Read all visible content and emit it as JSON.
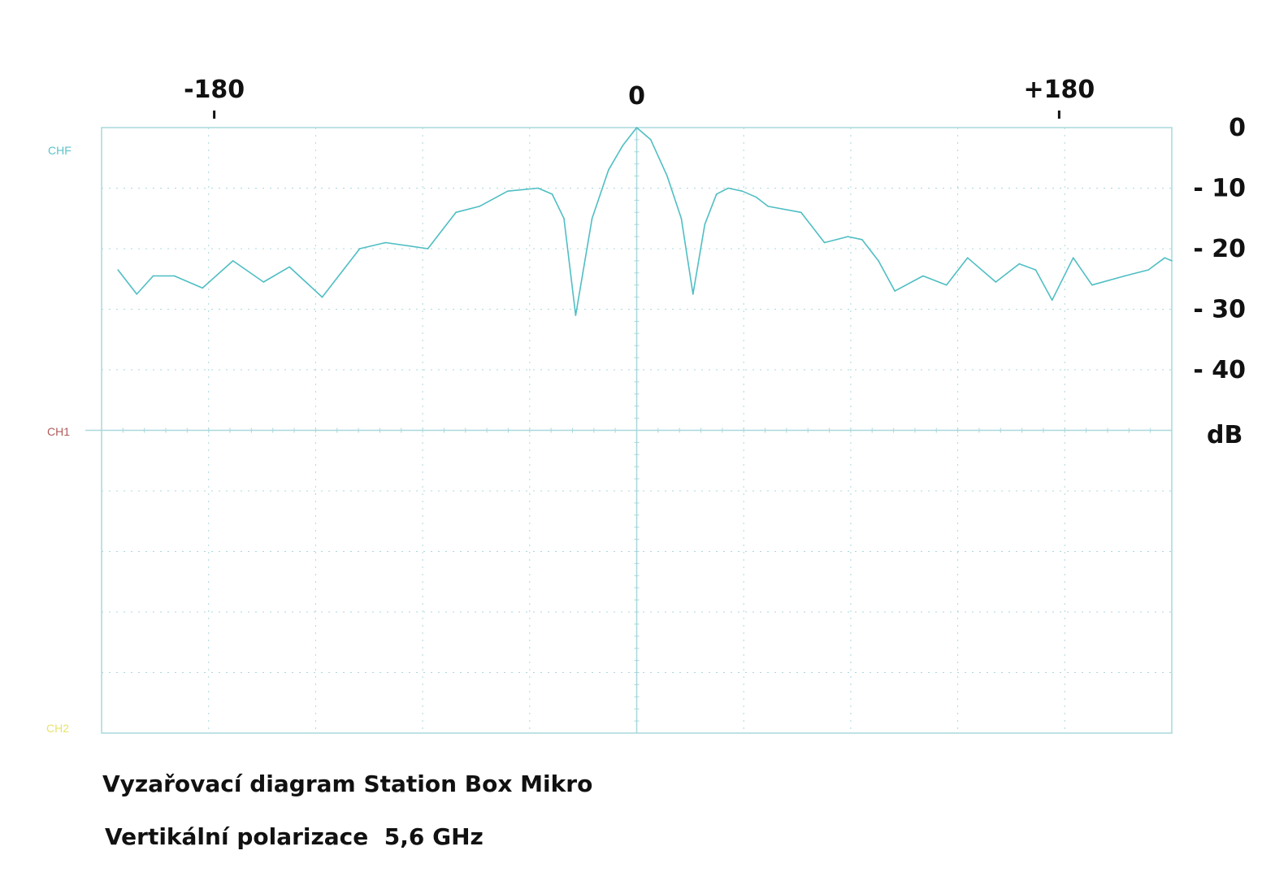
{
  "chart_data": {
    "type": "line",
    "title": "Vyzařovací diagram Station Box Mikro",
    "subtitle": "Vertikální polarizace  5,6 GHz",
    "xlabel": "",
    "ylabel": "dB",
    "x_ticks": [
      {
        "value": -180,
        "label": "-180"
      },
      {
        "value": 0,
        "label": "0"
      },
      {
        "value": 180,
        "label": "+180"
      }
    ],
    "y_ticks": [
      {
        "value": 0,
        "label": "0"
      },
      {
        "value": -10,
        "label": "- 10"
      },
      {
        "value": -20,
        "label": "- 20"
      },
      {
        "value": -30,
        "label": "- 30"
      },
      {
        "value": -40,
        "label": "- 40"
      }
    ],
    "xlim": [
      -228,
      228
    ],
    "ylim": [
      -50,
      0
    ],
    "grid": true,
    "channel_labels": {
      "chf": "CHF",
      "ch1": "CH1",
      "ch2": "CH2"
    },
    "colors": {
      "trace": "#4fbec3",
      "grid": "#a9d8dc",
      "chf_label": "#5cc3cb",
      "ch1_label": "#b05a5a",
      "ch2_label": "#e8e46a",
      "text": "#111111"
    },
    "series": [
      {
        "x": [
          -221,
          -213,
          -206,
          -197,
          -185,
          -172,
          -159,
          -148,
          -134,
          -118,
          -107,
          -89,
          -77,
          -67,
          -55,
          -42,
          -36,
          -31,
          -26,
          -19,
          -12,
          -6,
          0,
          6,
          13,
          19,
          24,
          29,
          34,
          39,
          45,
          51,
          56,
          70,
          80,
          90,
          96,
          103,
          110,
          122,
          132,
          141,
          153,
          163,
          170,
          177,
          186,
          194,
          208,
          218,
          225,
          228
        ],
        "y": [
          -23.5,
          -27.5,
          -24.5,
          -24.5,
          -26.5,
          -22,
          -25.5,
          -23,
          -28,
          -20,
          -19,
          -20,
          -14,
          -13,
          -10.5,
          -10,
          -11,
          -15,
          -31,
          -15,
          -7,
          -3,
          0,
          -2,
          -8,
          -15,
          -27.5,
          -16,
          -11,
          -10,
          -10.5,
          -11.5,
          -13,
          -14,
          -19,
          -18,
          -18.5,
          -22,
          -27,
          -24.5,
          -26,
          -21.5,
          -25.5,
          -22.5,
          -23.5,
          -28.5,
          -21.5,
          -26,
          -24.5,
          -23.5,
          -21.5,
          -22
        ]
      }
    ]
  }
}
